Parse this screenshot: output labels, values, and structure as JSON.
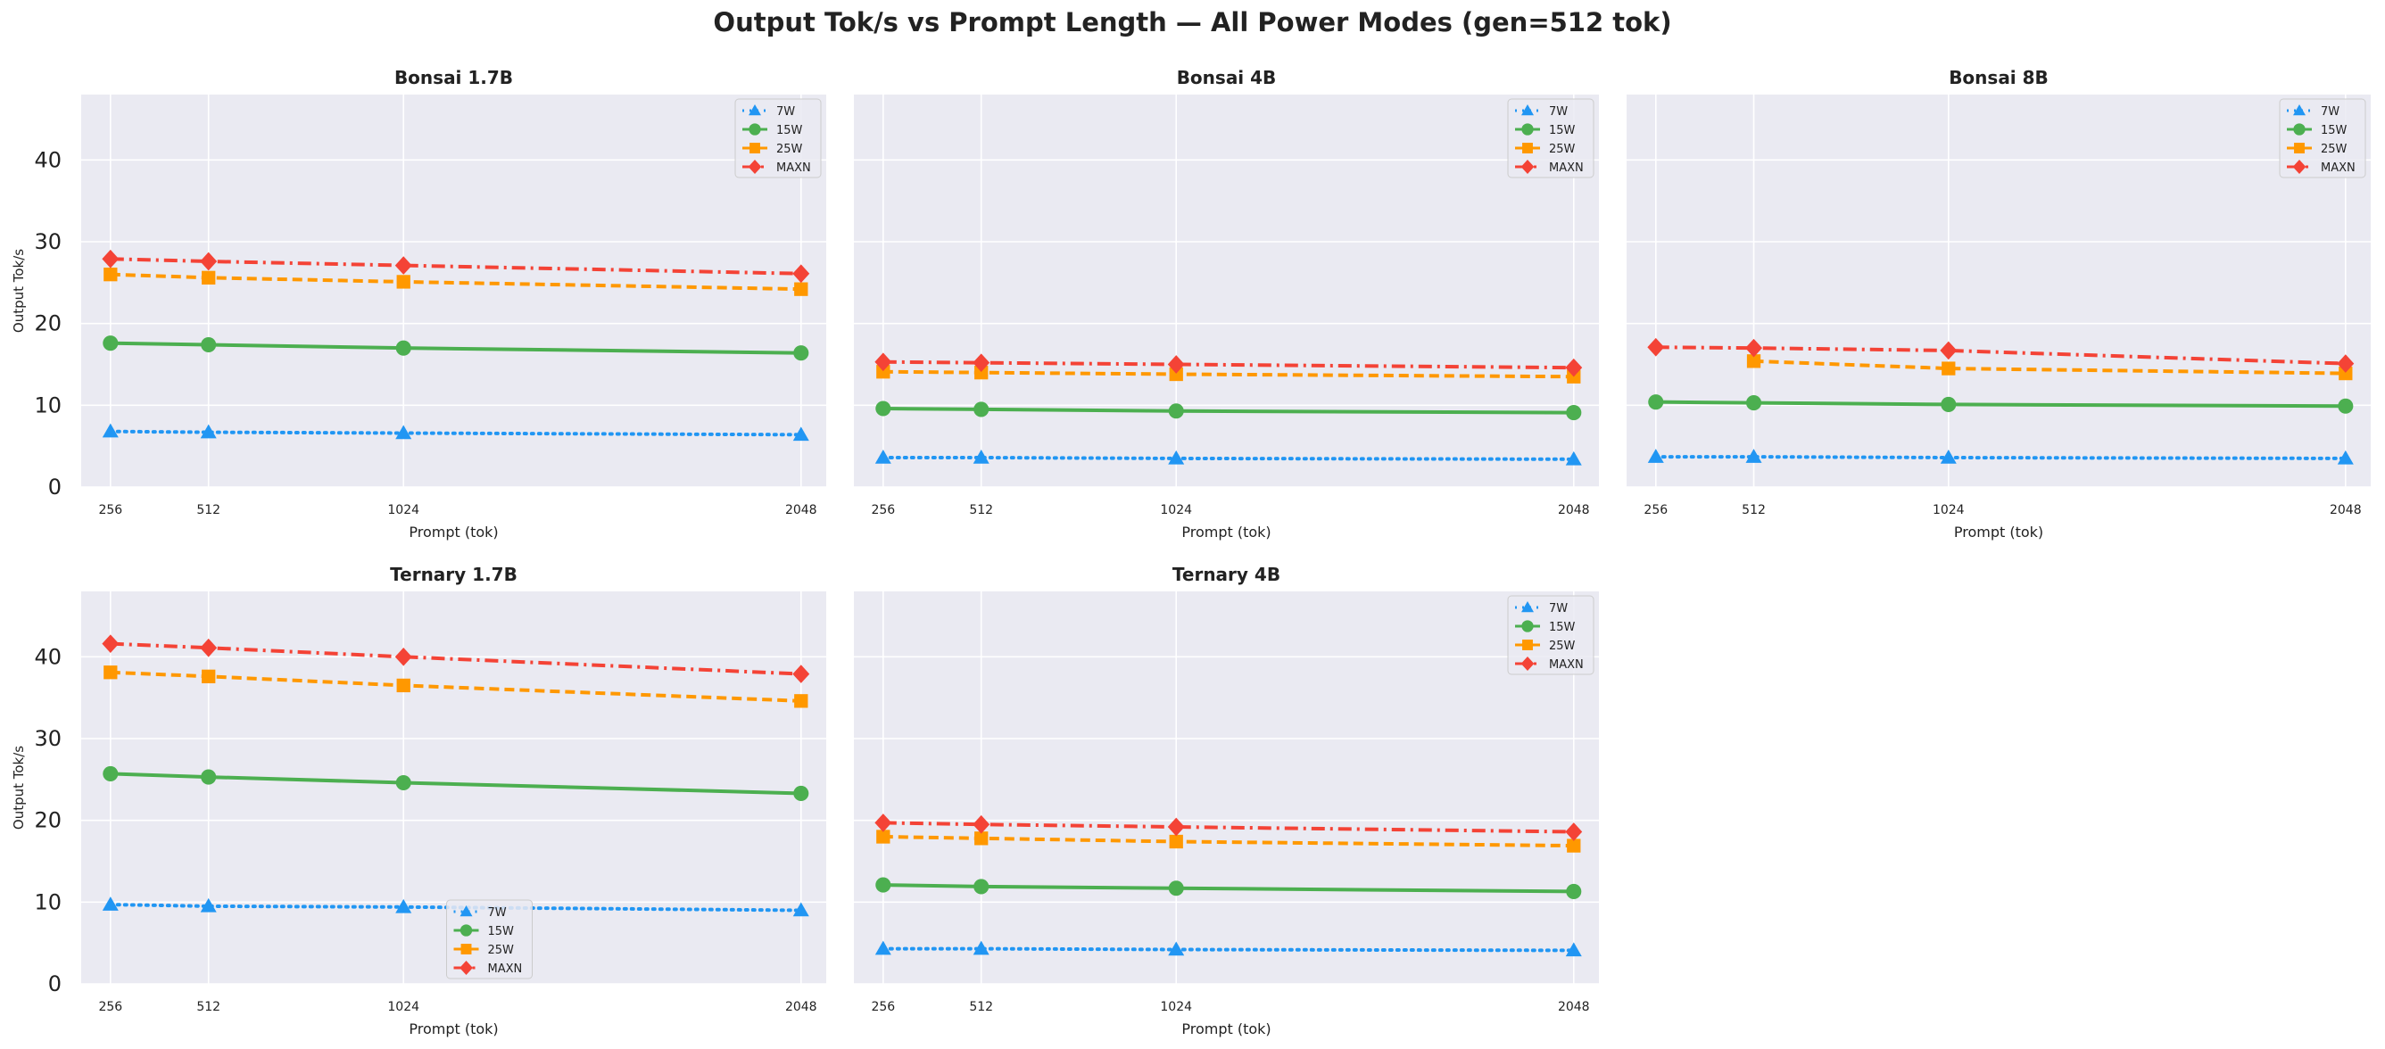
{
  "figure": {
    "title": "Output Tok/s vs Prompt Length — All Power Modes (gen=512 tok)"
  },
  "series_styles": [
    {
      "name": "7W",
      "color": "#2196f3",
      "marker": "triangle",
      "dash": "dotted"
    },
    {
      "name": "15W",
      "color": "#4caf50",
      "marker": "circle",
      "dash": "solid"
    },
    {
      "name": "25W",
      "color": "#ff9800",
      "marker": "square",
      "dash": "dashed"
    },
    {
      "name": "MAXN",
      "color": "#f44336",
      "marker": "diamond",
      "dash": "dashdot"
    }
  ],
  "chart_data": [
    {
      "type": "line",
      "title": "Bonsai 1.7B",
      "xlabel": "Prompt (tok)",
      "ylabel": "Output Tok/s",
      "x": [
        256,
        512,
        1024,
        2048
      ],
      "ylim": [
        0,
        48
      ],
      "yticks": [
        "0",
        "10",
        "20",
        "30",
        "40"
      ],
      "show_yticks": true,
      "grid": true,
      "legend": "upper right",
      "series": [
        {
          "name": "7W",
          "values": [
            6.8,
            6.7,
            6.6,
            6.4
          ]
        },
        {
          "name": "15W",
          "values": [
            17.6,
            17.4,
            17.0,
            16.4
          ]
        },
        {
          "name": "25W",
          "values": [
            26.0,
            25.6,
            25.1,
            24.2
          ]
        },
        {
          "name": "MAXN",
          "values": [
            27.9,
            27.6,
            27.1,
            26.1
          ]
        }
      ]
    },
    {
      "type": "line",
      "title": "Bonsai 4B",
      "xlabel": "Prompt (tok)",
      "ylabel": "",
      "x": [
        256,
        512,
        1024,
        2048
      ],
      "ylim": [
        0,
        48
      ],
      "yticks": [
        "0",
        "10",
        "20",
        "30",
        "40"
      ],
      "show_yticks": false,
      "grid": true,
      "legend": "upper right",
      "series": [
        {
          "name": "7W",
          "values": [
            3.6,
            3.6,
            3.5,
            3.4
          ]
        },
        {
          "name": "15W",
          "values": [
            9.6,
            9.5,
            9.3,
            9.1
          ]
        },
        {
          "name": "25W",
          "values": [
            14.1,
            14.0,
            13.8,
            13.5
          ]
        },
        {
          "name": "MAXN",
          "values": [
            15.3,
            15.2,
            15.0,
            14.6
          ]
        }
      ]
    },
    {
      "type": "line",
      "title": "Bonsai 8B",
      "xlabel": "Prompt (tok)",
      "ylabel": "",
      "x": [
        256,
        512,
        1024,
        2048
      ],
      "ylim": [
        0,
        48
      ],
      "yticks": [
        "0",
        "10",
        "20",
        "30",
        "40"
      ],
      "show_yticks": false,
      "grid": true,
      "legend": "upper right",
      "series": [
        {
          "name": "7W",
          "values": [
            3.7,
            3.7,
            3.6,
            3.5
          ]
        },
        {
          "name": "15W",
          "values": [
            10.4,
            10.3,
            10.1,
            9.9
          ]
        },
        {
          "name": "25W",
          "values": [
            null,
            15.4,
            14.5,
            13.9
          ]
        },
        {
          "name": "MAXN",
          "values": [
            17.1,
            17.0,
            16.7,
            15.1
          ]
        }
      ]
    },
    {
      "type": "line",
      "title": "Ternary 1.7B",
      "xlabel": "Prompt (tok)",
      "ylabel": "Output Tok/s",
      "x": [
        256,
        512,
        1024,
        2048
      ],
      "ylim": [
        0,
        48
      ],
      "yticks": [
        "0",
        "10",
        "20",
        "30",
        "40"
      ],
      "show_yticks": true,
      "grid": true,
      "legend": "lower center",
      "series": [
        {
          "name": "7W",
          "values": [
            9.7,
            9.5,
            9.4,
            9.0
          ]
        },
        {
          "name": "15W",
          "values": [
            25.7,
            25.3,
            24.6,
            23.3
          ]
        },
        {
          "name": "25W",
          "values": [
            38.1,
            37.6,
            36.5,
            34.6
          ]
        },
        {
          "name": "MAXN",
          "values": [
            41.6,
            41.1,
            40.0,
            37.9
          ]
        }
      ]
    },
    {
      "type": "line",
      "title": "Ternary 4B",
      "xlabel": "Prompt (tok)",
      "ylabel": "",
      "x": [
        256,
        512,
        1024,
        2048
      ],
      "ylim": [
        0,
        48
      ],
      "yticks": [
        "0",
        "10",
        "20",
        "30",
        "40"
      ],
      "show_yticks": false,
      "grid": true,
      "legend": "upper right",
      "series": [
        {
          "name": "7W",
          "values": [
            4.3,
            4.3,
            4.2,
            4.1
          ]
        },
        {
          "name": "15W",
          "values": [
            12.1,
            11.9,
            11.7,
            11.3
          ]
        },
        {
          "name": "25W",
          "values": [
            18.0,
            17.8,
            17.4,
            16.9
          ]
        },
        {
          "name": "MAXN",
          "values": [
            19.7,
            19.5,
            19.2,
            18.6
          ]
        }
      ]
    }
  ]
}
